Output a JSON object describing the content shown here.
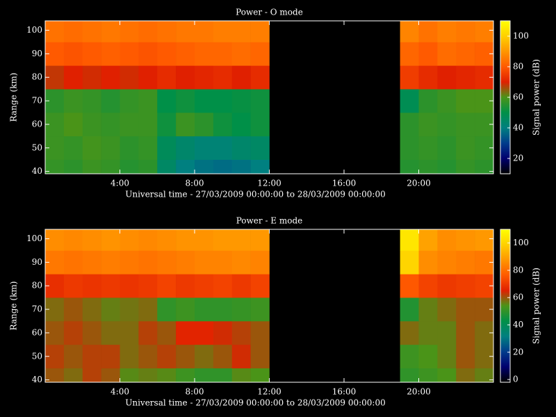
{
  "chart_data": [
    {
      "type": "heatmap",
      "title": "Power - O mode",
      "xlabel": "Universal time - 27/03/2009 00:00:00 to 28/03/2009 00:00:00",
      "ylabel": "Range (km)",
      "colorbar_label": "Signal power (dB)",
      "x": [
        0,
        1,
        2,
        3,
        4,
        5,
        6,
        7,
        8,
        9,
        10,
        11,
        12,
        13,
        14,
        15,
        16,
        17,
        18,
        19,
        20,
        21,
        22,
        23
      ],
      "y": [
        40,
        50,
        60,
        70,
        80,
        90,
        100
      ],
      "values": [
        [
          57,
          56,
          58,
          57,
          55,
          56,
          45,
          40,
          38,
          37,
          38,
          40,
          null,
          null,
          null,
          null,
          null,
          null,
          null,
          55,
          56,
          55,
          57,
          56
        ],
        [
          58,
          57,
          59,
          58,
          56,
          57,
          47,
          44,
          42,
          42,
          44,
          45,
          null,
          null,
          null,
          null,
          null,
          null,
          null,
          56,
          57,
          56,
          58,
          57
        ],
        [
          58,
          60,
          58,
          57,
          58,
          58,
          52,
          58,
          56,
          52,
          50,
          52,
          null,
          null,
          null,
          null,
          null,
          null,
          null,
          56,
          58,
          57,
          58,
          58
        ],
        [
          56,
          58,
          57,
          55,
          57,
          58,
          50,
          52,
          50,
          50,
          51,
          52,
          null,
          null,
          null,
          null,
          null,
          null,
          null,
          48,
          56,
          58,
          60,
          60
        ],
        [
          68,
          70,
          69,
          70,
          69,
          70,
          72,
          70,
          71,
          72,
          70,
          72,
          null,
          null,
          null,
          null,
          null,
          null,
          null,
          75,
          72,
          70,
          71,
          72
        ],
        [
          80,
          79,
          80,
          81,
          80,
          79,
          80,
          81,
          82,
          82,
          83,
          82,
          null,
          null,
          null,
          null,
          null,
          null,
          null,
          82,
          80,
          83,
          82,
          81
        ],
        [
          84,
          83,
          84,
          85,
          84,
          83,
          84,
          85,
          85,
          86,
          86,
          86,
          null,
          null,
          null,
          null,
          null,
          null,
          null,
          87,
          84,
          86,
          85,
          86
        ]
      ],
      "xlim": [
        0,
        24
      ],
      "xticks": [
        {
          "value": 4,
          "label": "4:00"
        },
        {
          "value": 8,
          "label": "8:00"
        },
        {
          "value": 12,
          "label": "12:00"
        },
        {
          "value": 16,
          "label": "16:00"
        },
        {
          "value": 20,
          "label": "20:00"
        }
      ],
      "ylim": [
        39,
        104
      ],
      "yticks": [
        40,
        50,
        60,
        70,
        80,
        90,
        100
      ],
      "clim": [
        10,
        110
      ],
      "cticks": [
        20,
        40,
        60,
        80,
        100
      ],
      "colormap": [
        "#000000",
        "#00006e",
        "#003c8c",
        "#008080",
        "#009048",
        "#4a9418",
        "#e02000",
        "#ff5a00",
        "#ff9600",
        "#ffd000",
        "#ffff00"
      ]
    },
    {
      "type": "heatmap",
      "title": "Power - E mode",
      "xlabel": "Universal time - 27/03/2009 00:00:00 to 28/03/2009 00:00:00",
      "ylabel": "Range (km)",
      "colorbar_label": "Signal power (dB)",
      "x": [
        0,
        1,
        2,
        3,
        4,
        5,
        6,
        7,
        8,
        9,
        10,
        11,
        12,
        13,
        14,
        15,
        16,
        17,
        18,
        19,
        20,
        21,
        22,
        23
      ],
      "y": [
        40,
        50,
        60,
        70,
        80,
        90,
        100
      ],
      "values": [
        [
          60,
          58,
          62,
          60,
          55,
          56,
          55,
          52,
          50,
          50,
          55,
          54,
          null,
          null,
          null,
          null,
          null,
          null,
          null,
          50,
          52,
          54,
          58,
          56
        ],
        [
          62,
          60,
          62,
          62,
          58,
          60,
          62,
          60,
          58,
          60,
          64,
          60,
          null,
          null,
          null,
          null,
          null,
          null,
          null,
          52,
          54,
          56,
          60,
          58
        ],
        [
          60,
          62,
          60,
          58,
          58,
          62,
          60,
          66,
          66,
          64,
          62,
          60,
          null,
          null,
          null,
          null,
          null,
          null,
          null,
          58,
          56,
          56,
          60,
          58
        ],
        [
          58,
          60,
          58,
          56,
          57,
          58,
          50,
          52,
          50,
          50,
          51,
          52,
          null,
          null,
          null,
          null,
          null,
          null,
          null,
          48,
          56,
          58,
          60,
          60
        ],
        [
          68,
          70,
          69,
          70,
          69,
          70,
          72,
          70,
          71,
          72,
          70,
          72,
          null,
          null,
          null,
          null,
          null,
          null,
          null,
          76,
          72,
          70,
          71,
          72
        ],
        [
          82,
          81,
          82,
          83,
          82,
          81,
          82,
          83,
          84,
          84,
          85,
          84,
          null,
          null,
          null,
          null,
          null,
          null,
          null,
          100,
          86,
          84,
          83,
          82
        ],
        [
          86,
          85,
          86,
          87,
          86,
          85,
          86,
          87,
          87,
          88,
          88,
          88,
          null,
          null,
          null,
          null,
          null,
          null,
          null,
          104,
          90,
          86,
          87,
          88
        ]
      ],
      "xlim": [
        0,
        24
      ],
      "xticks": [
        {
          "value": 4,
          "label": "4:00"
        },
        {
          "value": 8,
          "label": "8:00"
        },
        {
          "value": 12,
          "label": "12:00"
        },
        {
          "value": 16,
          "label": "16:00"
        },
        {
          "value": 20,
          "label": "20:00"
        }
      ],
      "ylim": [
        39,
        104
      ],
      "yticks": [
        40,
        50,
        60,
        70,
        80,
        90,
        100
      ],
      "clim": [
        -2,
        110
      ],
      "cticks": [
        0,
        20,
        40,
        60,
        80,
        100
      ],
      "colormap": [
        "#000000",
        "#00006e",
        "#003c8c",
        "#008080",
        "#009048",
        "#4a9418",
        "#e02000",
        "#ff5a00",
        "#ff9600",
        "#ffd000",
        "#ffff00"
      ]
    }
  ]
}
